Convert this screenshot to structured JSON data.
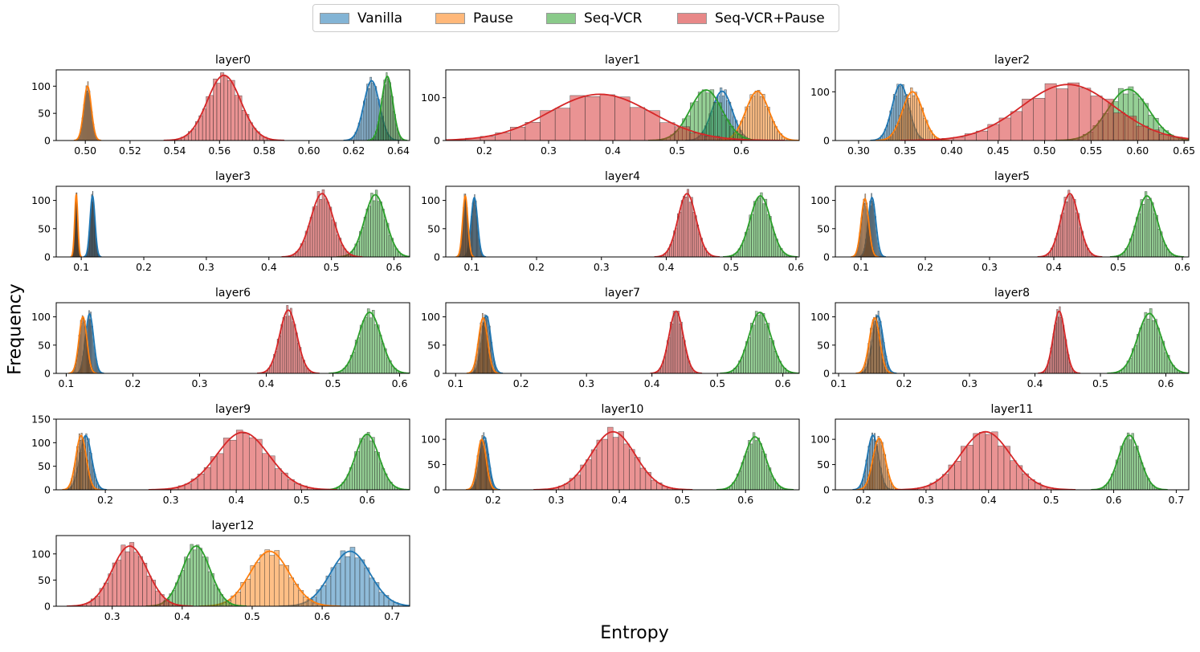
{
  "legend": [
    {
      "name": "Vanilla",
      "color": "#1f77b4"
    },
    {
      "name": "Pause",
      "color": "#ff7f0e"
    },
    {
      "name": "Seq-VCR",
      "color": "#2ca02c"
    },
    {
      "name": "Seq-VCR+Pause",
      "color": "#d62728"
    }
  ],
  "xlabel": "Entropy",
  "ylabel": "Frequency",
  "chart_data": [
    {
      "type": "histogram",
      "title": "layer0",
      "xlim": [
        0.487,
        0.645
      ],
      "ylim": [
        0,
        130
      ],
      "xticks": [
        0.5,
        0.52,
        0.54,
        0.56,
        0.58,
        0.6,
        0.62,
        0.64
      ],
      "xtick_labels": [
        "0.50",
        "0.52",
        "0.54",
        "0.56",
        "0.58",
        "0.60",
        "0.62",
        "0.64"
      ],
      "yticks": [
        0,
        50,
        100
      ],
      "ytick_labels": [
        "0",
        "50",
        "100"
      ],
      "series": [
        {
          "name": "Vanilla",
          "center": 0.628,
          "std": 0.0035,
          "peak": 110
        },
        {
          "name": "Pause",
          "center": 0.501,
          "std": 0.0017,
          "peak": 100
        },
        {
          "name": "Seq-VCR",
          "center": 0.635,
          "std": 0.0025,
          "peak": 118
        },
        {
          "name": "Seq-VCR+Pause",
          "center": 0.562,
          "std": 0.0075,
          "peak": 120
        }
      ]
    },
    {
      "type": "histogram",
      "title": "layer1",
      "xlim": [
        0.14,
        0.69
      ],
      "ylim": [
        0,
        165
      ],
      "xticks": [
        0.2,
        0.3,
        0.4,
        0.5,
        0.6
      ],
      "xtick_labels": [
        "0.2",
        "0.3",
        "0.4",
        "0.5",
        "0.6"
      ],
      "yticks": [
        0,
        100
      ],
      "ytick_labels": [
        "0",
        "100"
      ],
      "series": [
        {
          "name": "Vanilla",
          "center": 0.57,
          "std": 0.016,
          "peak": 115
        },
        {
          "name": "Pause",
          "center": 0.625,
          "std": 0.018,
          "peak": 115
        },
        {
          "name": "Seq-VCR",
          "center": 0.545,
          "std": 0.025,
          "peak": 118
        },
        {
          "name": "Seq-VCR+Pause",
          "center": 0.38,
          "std": 0.08,
          "peak": 108
        }
      ]
    },
    {
      "type": "histogram",
      "title": "layer2",
      "xlim": [
        0.275,
        0.655
      ],
      "ylim": [
        0,
        145
      ],
      "xticks": [
        0.3,
        0.35,
        0.4,
        0.45,
        0.5,
        0.55,
        0.6,
        0.65
      ],
      "xtick_labels": [
        "0.30",
        "0.35",
        "0.40",
        "0.45",
        "0.50",
        "0.55",
        "0.60",
        "0.65"
      ],
      "yticks": [
        0,
        100
      ],
      "ytick_labels": [
        "0",
        "100"
      ],
      "series": [
        {
          "name": "Vanilla",
          "center": 0.345,
          "std": 0.009,
          "peak": 115
        },
        {
          "name": "Pause",
          "center": 0.358,
          "std": 0.011,
          "peak": 100
        },
        {
          "name": "Seq-VCR",
          "center": 0.59,
          "std": 0.022,
          "peak": 105
        },
        {
          "name": "Seq-VCR+Pause",
          "center": 0.525,
          "std": 0.05,
          "peak": 115
        }
      ]
    },
    {
      "type": "histogram",
      "title": "layer3",
      "xlim": [
        0.06,
        0.625
      ],
      "ylim": [
        0,
        125
      ],
      "xticks": [
        0.1,
        0.2,
        0.3,
        0.4,
        0.5,
        0.6
      ],
      "xtick_labels": [
        "0.1",
        "0.2",
        "0.3",
        "0.4",
        "0.5",
        "0.6"
      ],
      "yticks": [
        0,
        50,
        100
      ],
      "ytick_labels": [
        "0",
        "50",
        "100"
      ],
      "series": [
        {
          "name": "Vanilla",
          "center": 0.118,
          "std": 0.004,
          "peak": 108
        },
        {
          "name": "Pause",
          "center": 0.092,
          "std": 0.0025,
          "peak": 110
        },
        {
          "name": "Seq-VCR",
          "center": 0.57,
          "std": 0.017,
          "peak": 110
        },
        {
          "name": "Seq-VCR+Pause",
          "center": 0.485,
          "std": 0.018,
          "peak": 112
        }
      ]
    },
    {
      "type": "histogram",
      "title": "layer4",
      "xlim": [
        0.06,
        0.605
      ],
      "ylim": [
        0,
        125
      ],
      "xticks": [
        0.1,
        0.2,
        0.3,
        0.4,
        0.5,
        0.6
      ],
      "xtick_labels": [
        "0.1",
        "0.2",
        "0.3",
        "0.4",
        "0.5",
        "0.6"
      ],
      "yticks": [
        0,
        50,
        100
      ],
      "ytick_labels": [
        "0",
        "50",
        "100"
      ],
      "series": [
        {
          "name": "Vanilla",
          "center": 0.104,
          "std": 0.005,
          "peak": 105
        },
        {
          "name": "Pause",
          "center": 0.09,
          "std": 0.004,
          "peak": 108
        },
        {
          "name": "Seq-VCR",
          "center": 0.545,
          "std": 0.016,
          "peak": 108
        },
        {
          "name": "Seq-VCR+Pause",
          "center": 0.432,
          "std": 0.014,
          "peak": 112
        }
      ]
    },
    {
      "type": "histogram",
      "title": "layer5",
      "xlim": [
        0.06,
        0.61
      ],
      "ylim": [
        0,
        125
      ],
      "xticks": [
        0.1,
        0.2,
        0.3,
        0.4,
        0.5,
        0.6
      ],
      "xtick_labels": [
        "0.1",
        "0.2",
        "0.3",
        "0.4",
        "0.5",
        "0.6"
      ],
      "yticks": [
        0,
        50,
        100
      ],
      "ytick_labels": [
        "0",
        "50",
        "100"
      ],
      "series": [
        {
          "name": "Vanilla",
          "center": 0.117,
          "std": 0.006,
          "peak": 105
        },
        {
          "name": "Pause",
          "center": 0.106,
          "std": 0.006,
          "peak": 103
        },
        {
          "name": "Seq-VCR",
          "center": 0.545,
          "std": 0.016,
          "peak": 108
        },
        {
          "name": "Seq-VCR+Pause",
          "center": 0.425,
          "std": 0.014,
          "peak": 112
        }
      ]
    },
    {
      "type": "histogram",
      "title": "layer6",
      "xlim": [
        0.085,
        0.615
      ],
      "ylim": [
        0,
        125
      ],
      "xticks": [
        0.1,
        0.2,
        0.3,
        0.4,
        0.5,
        0.6
      ],
      "xtick_labels": [
        "0.1",
        "0.2",
        "0.3",
        "0.4",
        "0.5",
        "0.6"
      ],
      "yticks": [
        0,
        50,
        100
      ],
      "ytick_labels": [
        "0",
        "50",
        "100"
      ],
      "series": [
        {
          "name": "Vanilla",
          "center": 0.135,
          "std": 0.006,
          "peak": 105
        },
        {
          "name": "Pause",
          "center": 0.125,
          "std": 0.006,
          "peak": 100
        },
        {
          "name": "Seq-VCR",
          "center": 0.555,
          "std": 0.017,
          "peak": 108
        },
        {
          "name": "Seq-VCR+Pause",
          "center": 0.433,
          "std": 0.013,
          "peak": 112
        }
      ]
    },
    {
      "type": "histogram",
      "title": "layer7",
      "xlim": [
        0.085,
        0.625
      ],
      "ylim": [
        0,
        125
      ],
      "xticks": [
        0.1,
        0.2,
        0.3,
        0.4,
        0.5,
        0.6
      ],
      "xtick_labels": [
        "0.1",
        "0.2",
        "0.3",
        "0.4",
        "0.5",
        "0.6"
      ],
      "yticks": [
        0,
        50,
        100
      ],
      "ytick_labels": [
        "0",
        "50",
        "100"
      ],
      "series": [
        {
          "name": "Vanilla",
          "center": 0.147,
          "std": 0.007,
          "peak": 102
        },
        {
          "name": "Pause",
          "center": 0.142,
          "std": 0.007,
          "peak": 98
        },
        {
          "name": "Seq-VCR",
          "center": 0.565,
          "std": 0.017,
          "peak": 108
        },
        {
          "name": "Seq-VCR+Pause",
          "center": 0.437,
          "std": 0.011,
          "peak": 110
        }
      ]
    },
    {
      "type": "histogram",
      "title": "layer8",
      "xlim": [
        0.095,
        0.635
      ],
      "ylim": [
        0,
        125
      ],
      "xticks": [
        0.1,
        0.2,
        0.3,
        0.4,
        0.5,
        0.6
      ],
      "xtick_labels": [
        "0.1",
        "0.2",
        "0.3",
        "0.4",
        "0.5",
        "0.6"
      ],
      "yticks": [
        0,
        50,
        100
      ],
      "ytick_labels": [
        "0",
        "50",
        "100"
      ],
      "series": [
        {
          "name": "Vanilla",
          "center": 0.16,
          "std": 0.008,
          "peak": 102
        },
        {
          "name": "Pause",
          "center": 0.155,
          "std": 0.008,
          "peak": 98
        },
        {
          "name": "Seq-VCR",
          "center": 0.575,
          "std": 0.018,
          "peak": 106
        },
        {
          "name": "Seq-VCR+Pause",
          "center": 0.437,
          "std": 0.009,
          "peak": 110
        }
      ]
    },
    {
      "type": "histogram",
      "title": "layer9",
      "xlim": [
        0.125,
        0.665
      ],
      "ylim": [
        0,
        150
      ],
      "xticks": [
        0.2,
        0.3,
        0.4,
        0.5,
        0.6
      ],
      "xtick_labels": [
        "0.2",
        "0.3",
        "0.4",
        "0.5",
        "0.6"
      ],
      "yticks": [
        0,
        50,
        100,
        150
      ],
      "ytick_labels": [
        "0",
        "50",
        "100",
        "150"
      ],
      "series": [
        {
          "name": "Vanilla",
          "center": 0.17,
          "std": 0.009,
          "peak": 115
        },
        {
          "name": "Pause",
          "center": 0.163,
          "std": 0.008,
          "peak": 115
        },
        {
          "name": "Seq-VCR",
          "center": 0.6,
          "std": 0.018,
          "peak": 118
        },
        {
          "name": "Seq-VCR+Pause",
          "center": 0.41,
          "std": 0.04,
          "peak": 122
        }
      ]
    },
    {
      "type": "histogram",
      "title": "layer10",
      "xlim": [
        0.125,
        0.685
      ],
      "ylim": [
        0,
        140
      ],
      "xticks": [
        0.2,
        0.3,
        0.4,
        0.5,
        0.6
      ],
      "xtick_labels": [
        "0.2",
        "0.3",
        "0.4",
        "0.5",
        "0.6"
      ],
      "yticks": [
        0,
        50,
        100
      ],
      "ytick_labels": [
        "0",
        "50",
        "100"
      ],
      "series": [
        {
          "name": "Vanilla",
          "center": 0.186,
          "std": 0.007,
          "peak": 105
        },
        {
          "name": "Pause",
          "center": 0.182,
          "std": 0.007,
          "peak": 100
        },
        {
          "name": "Seq-VCR",
          "center": 0.615,
          "std": 0.017,
          "peak": 105
        },
        {
          "name": "Seq-VCR+Pause",
          "center": 0.39,
          "std": 0.035,
          "peak": 115
        }
      ]
    },
    {
      "type": "histogram",
      "title": "layer11",
      "xlim": [
        0.155,
        0.72
      ],
      "ylim": [
        0,
        140
      ],
      "xticks": [
        0.2,
        0.3,
        0.4,
        0.5,
        0.6,
        0.7
      ],
      "xtick_labels": [
        "0.2",
        "0.3",
        "0.4",
        "0.5",
        "0.6",
        "0.7"
      ],
      "yticks": [
        0,
        50,
        100
      ],
      "ytick_labels": [
        "0",
        "50",
        "100"
      ],
      "series": [
        {
          "name": "Vanilla",
          "center": 0.215,
          "std": 0.009,
          "peak": 108
        },
        {
          "name": "Pause",
          "center": 0.225,
          "std": 0.01,
          "peak": 102
        },
        {
          "name": "Seq-VCR",
          "center": 0.625,
          "std": 0.017,
          "peak": 108
        },
        {
          "name": "Seq-VCR+Pause",
          "center": 0.395,
          "std": 0.04,
          "peak": 115
        }
      ]
    },
    {
      "type": "histogram",
      "title": "layer12",
      "xlim": [
        0.22,
        0.725
      ],
      "ylim": [
        0,
        135
      ],
      "xticks": [
        0.3,
        0.4,
        0.5,
        0.6,
        0.7
      ],
      "xtick_labels": [
        "0.3",
        "0.4",
        "0.5",
        "0.6",
        "0.7"
      ],
      "yticks": [
        0,
        50,
        100
      ],
      "ytick_labels": [
        "0",
        "50",
        "100"
      ],
      "series": [
        {
          "name": "Vanilla",
          "center": 0.64,
          "std": 0.028,
          "peak": 105
        },
        {
          "name": "Pause",
          "center": 0.525,
          "std": 0.028,
          "peak": 105
        },
        {
          "name": "Seq-VCR",
          "center": 0.42,
          "std": 0.02,
          "peak": 115
        },
        {
          "name": "Seq-VCR+Pause",
          "center": 0.325,
          "std": 0.025,
          "peak": 115
        }
      ]
    }
  ]
}
